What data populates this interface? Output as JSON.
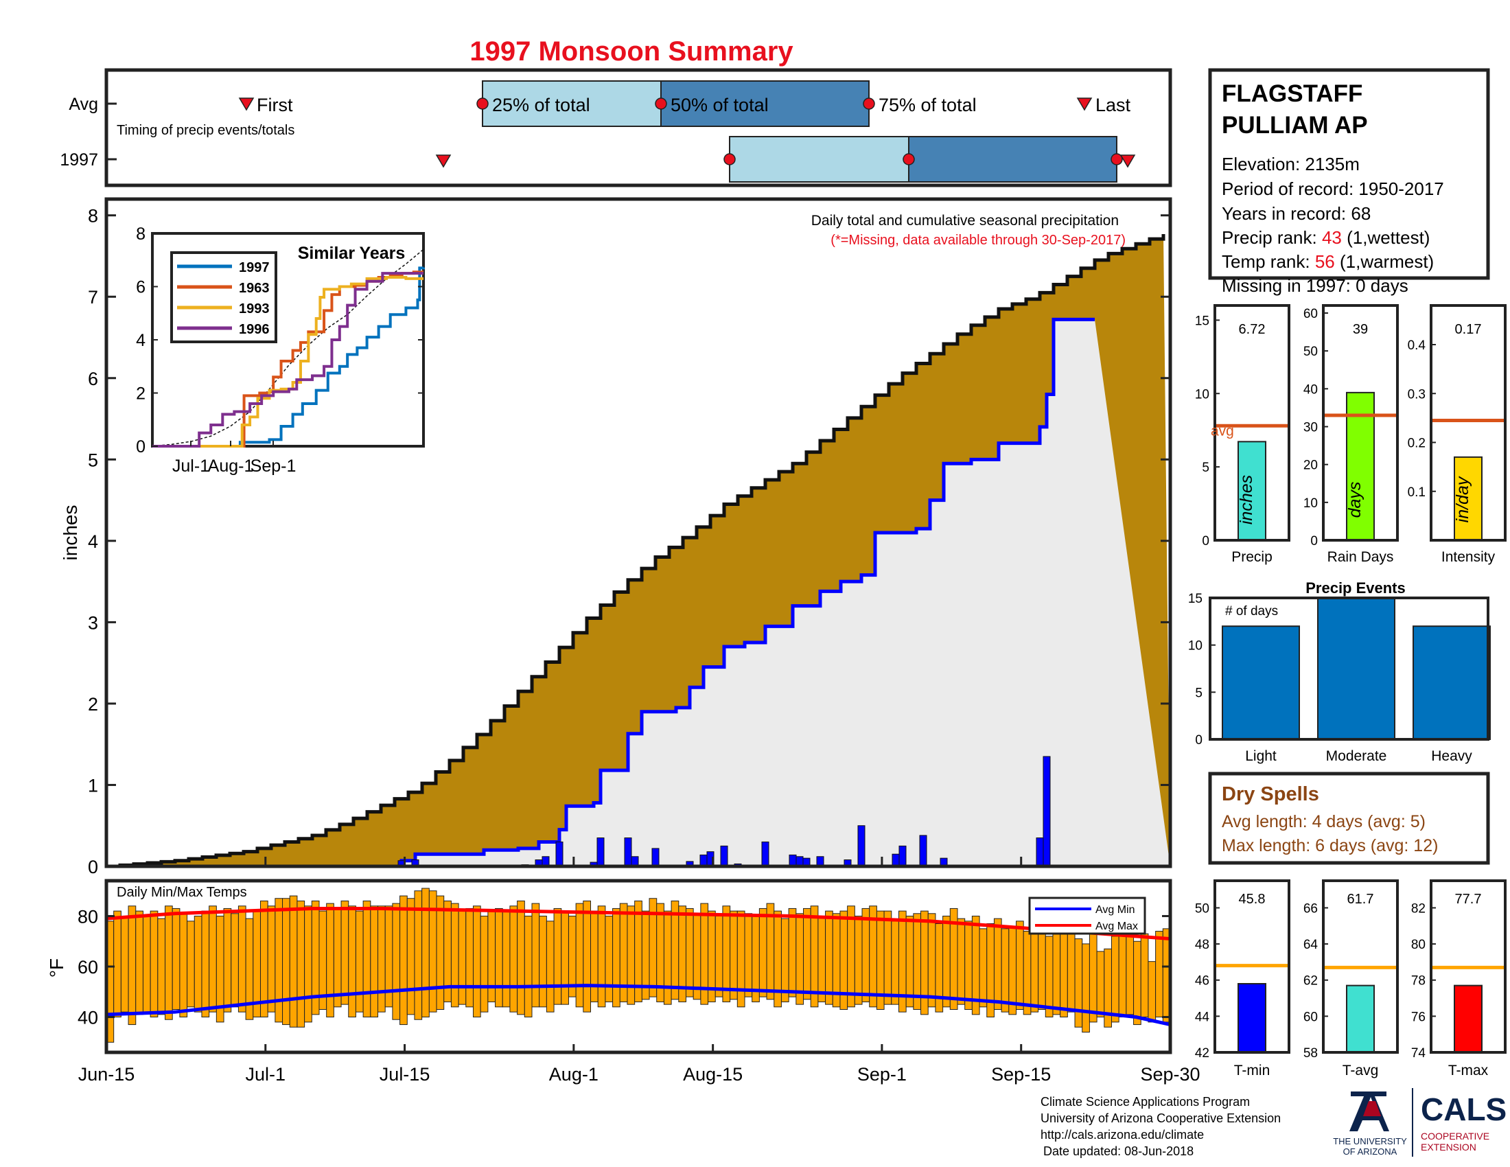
{
  "title": "1997 Monsoon Summary",
  "timing": {
    "row_avg": "Avg",
    "row_year": "1997",
    "first_label": "First",
    "last_label": "Last",
    "p25_label": "25% of total",
    "p50_label": "50% of total",
    "p75_label": "75% of total",
    "caption": "Timing of precip events/totals",
    "avg": {
      "first": "Jun-30",
      "p25": "Jul-26",
      "p50": "Aug-07",
      "p75": "Aug-29",
      "last": "Sep-24"
    },
    "year": {
      "first": "Jul-20",
      "p25": "Aug-17",
      "p50": "Sep-05",
      "p75": "Sep-27",
      "last": "Sep-28"
    }
  },
  "station": {
    "name_line1": "FLAGSTAFF",
    "name_line2": "PULLIAM AP",
    "elevation": "Elevation: 2135m",
    "period": "Period of record: 1950-2017",
    "years": "Years in record: 68",
    "precip_rank_prefix": "Precip rank: ",
    "precip_rank_value": "43",
    "precip_rank_suffix": " (1,wettest)",
    "temp_rank_prefix": "Temp rank: ",
    "temp_rank_value": "56",
    "temp_rank_suffix": " (1,warmest)",
    "missing": "Missing in 1997: 0 days"
  },
  "main_chart": {
    "title": "Daily total and cumulative seasonal precipitation",
    "note": "(*=Missing, data available through 30-Sep-2017)",
    "ylabel": "inches",
    "ylim": [
      0,
      8.2
    ],
    "yticks": [
      0,
      1,
      2,
      3,
      4,
      5,
      6,
      7,
      8
    ],
    "xticks": [
      "Jun-15",
      "Jul-1",
      "Jul-15",
      "Aug-1",
      "Aug-15",
      "Sep-1",
      "Sep-15",
      "Sep-30"
    ],
    "avg_cumulative": [
      [
        0,
        0
      ],
      [
        10,
        0.07
      ],
      [
        20,
        0.18
      ],
      [
        30,
        0.38
      ],
      [
        35,
        0.55
      ],
      [
        40,
        0.75
      ],
      [
        45,
        0.95
      ],
      [
        50,
        1.3
      ],
      [
        55,
        1.7
      ],
      [
        60,
        2.15
      ],
      [
        65,
        2.6
      ],
      [
        70,
        3.05
      ],
      [
        75,
        3.45
      ],
      [
        80,
        3.8
      ],
      [
        85,
        4.1
      ],
      [
        90,
        4.45
      ],
      [
        95,
        4.7
      ],
      [
        100,
        4.95
      ],
      [
        105,
        5.3
      ],
      [
        110,
        5.65
      ],
      [
        115,
        6.0
      ],
      [
        120,
        6.3
      ],
      [
        125,
        6.6
      ],
      [
        130,
        6.85
      ],
      [
        135,
        7.0
      ],
      [
        140,
        7.25
      ],
      [
        145,
        7.5
      ],
      [
        150,
        7.65
      ],
      [
        155,
        7.8
      ]
    ],
    "year_cumulative": [
      [
        0,
        0
      ],
      [
        42,
        0
      ],
      [
        43,
        0.07
      ],
      [
        45,
        0.15
      ],
      [
        55,
        0.2
      ],
      [
        60,
        0.22
      ],
      [
        63,
        0.3
      ],
      [
        66,
        0.45
      ],
      [
        67,
        0.74
      ],
      [
        71,
        0.78
      ],
      [
        72,
        1.18
      ],
      [
        76,
        1.63
      ],
      [
        78,
        1.9
      ],
      [
        83,
        1.95
      ],
      [
        85,
        2.2
      ],
      [
        87,
        2.45
      ],
      [
        90,
        2.7
      ],
      [
        93,
        2.75
      ],
      [
        96,
        2.95
      ],
      [
        100,
        3.2
      ],
      [
        104,
        3.38
      ],
      [
        107,
        3.5
      ],
      [
        110,
        3.58
      ],
      [
        112,
        4.1
      ],
      [
        118,
        4.15
      ],
      [
        120,
        4.5
      ],
      [
        122,
        4.95
      ],
      [
        126,
        5.0
      ],
      [
        130,
        5.2
      ],
      [
        136,
        5.4
      ],
      [
        137,
        5.8
      ],
      [
        138,
        6.72
      ],
      [
        144,
        6.72
      ]
    ],
    "daily_precip": [
      [
        43,
        0.07
      ],
      [
        45,
        0.08
      ],
      [
        61,
        0.02
      ],
      [
        63,
        0.08
      ],
      [
        64,
        0.12
      ],
      [
        66,
        0.3
      ],
      [
        71,
        0.05
      ],
      [
        72,
        0.35
      ],
      [
        76,
        0.35
      ],
      [
        77,
        0.12
      ],
      [
        80,
        0.22
      ],
      [
        85,
        0.06
      ],
      [
        87,
        0.14
      ],
      [
        88,
        0.18
      ],
      [
        90,
        0.25
      ],
      [
        92,
        0.03
      ],
      [
        96,
        0.3
      ],
      [
        100,
        0.14
      ],
      [
        101,
        0.12
      ],
      [
        102,
        0.1
      ],
      [
        104,
        0.12
      ],
      [
        108,
        0.08
      ],
      [
        110,
        0.5
      ],
      [
        115,
        0.15
      ],
      [
        116,
        0.25
      ],
      [
        119,
        0.38
      ],
      [
        122,
        0.1
      ],
      [
        136,
        0.35
      ],
      [
        137,
        1.35
      ]
    ],
    "inset": {
      "title": "Similar Years",
      "ylim": [
        0,
        8
      ],
      "yticks": [
        0,
        2,
        4,
        6,
        8
      ],
      "xticks": [
        "Jul-1",
        "Aug-1",
        "Sep-1"
      ],
      "series": [
        {
          "name": "1997",
          "color": "#0072bd",
          "points": [
            [
              0,
              0
            ],
            [
              43,
              0
            ],
            [
              45,
              0.15
            ],
            [
              60,
              0.25
            ],
            [
              66,
              0.75
            ],
            [
              72,
              1.2
            ],
            [
              77,
              1.6
            ],
            [
              84,
              2.1
            ],
            [
              90,
              2.75
            ],
            [
              96,
              3.0
            ],
            [
              100,
              3.45
            ],
            [
              105,
              3.7
            ],
            [
              110,
              4.1
            ],
            [
              116,
              4.5
            ],
            [
              122,
              4.95
            ],
            [
              130,
              5.2
            ],
            [
              136,
              5.5
            ],
            [
              137,
              6.7
            ],
            [
              139,
              6.72
            ]
          ]
        },
        {
          "name": "1963",
          "color": "#d95319",
          "points": [
            [
              0,
              0
            ],
            [
              45,
              0
            ],
            [
              47,
              1.9
            ],
            [
              55,
              2.0
            ],
            [
              60,
              2.05
            ],
            [
              62,
              2.6
            ],
            [
              66,
              3.2
            ],
            [
              72,
              3.6
            ],
            [
              76,
              3.9
            ],
            [
              80,
              4.3
            ],
            [
              88,
              5.1
            ],
            [
              92,
              5.7
            ],
            [
              96,
              6.0
            ],
            [
              104,
              6.05
            ],
            [
              110,
              6.2
            ],
            [
              116,
              6.35
            ],
            [
              122,
              6.4
            ],
            [
              128,
              6.5
            ],
            [
              134,
              6.55
            ],
            [
              139,
              6.55
            ]
          ]
        },
        {
          "name": "1993",
          "color": "#edb120",
          "points": [
            [
              0,
              0
            ],
            [
              44,
              0
            ],
            [
              46,
              0.8
            ],
            [
              50,
              1.1
            ],
            [
              54,
              1.8
            ],
            [
              60,
              2.1
            ],
            [
              66,
              2.15
            ],
            [
              72,
              2.4
            ],
            [
              76,
              3.2
            ],
            [
              80,
              4.2
            ],
            [
              84,
              4.8
            ],
            [
              86,
              5.6
            ],
            [
              88,
              5.9
            ],
            [
              96,
              6.0
            ],
            [
              102,
              6.1
            ],
            [
              110,
              6.3
            ],
            [
              120,
              6.35
            ],
            [
              130,
              6.3
            ],
            [
              139,
              6.3
            ]
          ]
        },
        {
          "name": "1996",
          "color": "#7e2f8e",
          "points": [
            [
              0,
              0
            ],
            [
              20,
              0
            ],
            [
              24,
              0.5
            ],
            [
              30,
              0.8
            ],
            [
              36,
              1.2
            ],
            [
              42,
              1.3
            ],
            [
              50,
              1.6
            ],
            [
              56,
              1.9
            ],
            [
              62,
              2.05
            ],
            [
              70,
              2.15
            ],
            [
              74,
              2.5
            ],
            [
              82,
              2.65
            ],
            [
              88,
              3.0
            ],
            [
              92,
              4.0
            ],
            [
              96,
              4.5
            ],
            [
              100,
              5.3
            ],
            [
              104,
              5.9
            ],
            [
              110,
              6.2
            ],
            [
              118,
              6.5
            ],
            [
              128,
              6.5
            ],
            [
              139,
              6.5
            ]
          ]
        }
      ],
      "avg": [
        [
          0,
          0
        ],
        [
          10,
          0.07
        ],
        [
          20,
          0.18
        ],
        [
          30,
          0.38
        ],
        [
          40,
          0.75
        ],
        [
          50,
          1.3
        ],
        [
          60,
          2.15
        ],
        [
          70,
          3.05
        ],
        [
          80,
          3.8
        ],
        [
          90,
          4.45
        ],
        [
          100,
          4.95
        ],
        [
          110,
          5.65
        ],
        [
          120,
          6.3
        ],
        [
          130,
          6.85
        ],
        [
          139,
          7.4
        ]
      ]
    }
  },
  "mini_bars": [
    {
      "label": "Precip",
      "unit": "inches",
      "value_text": "6.72",
      "value": 6.72,
      "avg": 7.8,
      "ylim": [
        0,
        16
      ],
      "yticks": [
        0,
        5,
        10,
        15
      ],
      "color": "#40e0d0",
      "avg_text": "avg"
    },
    {
      "label": "Rain Days",
      "unit": "days",
      "value_text": "39",
      "value": 39,
      "avg": 33,
      "ylim": [
        0,
        62
      ],
      "yticks": [
        0,
        10,
        20,
        30,
        40,
        50,
        60
      ],
      "color": "#80ff00"
    },
    {
      "label": "Intensity",
      "unit": "in/day",
      "value_text": "0.17",
      "value": 0.17,
      "avg": 0.245,
      "ylim": [
        0,
        0.48
      ],
      "yticks": [
        0.1,
        0.2,
        0.3,
        0.4
      ],
      "color": "#ffd700"
    }
  ],
  "precip_events": {
    "title": "Precip Events",
    "ylabel_note": "# of days",
    "ylim": [
      0,
      15
    ],
    "yticks": [
      0,
      5,
      10,
      15
    ],
    "categories": [
      "Light",
      "Moderate",
      "Heavy"
    ],
    "values": [
      12,
      15,
      12
    ],
    "color": "#0072bd"
  },
  "dry_spells": {
    "title": "Dry Spells",
    "avg_length": "Avg length: 4 days (avg: 5)",
    "max_length": "Max length: 6 days (avg: 12)"
  },
  "temps": {
    "title": "Daily Min/Max Temps",
    "ylabel": "°F",
    "ylim": [
      26,
      94
    ],
    "yticks": [
      40,
      60,
      80
    ],
    "legend": {
      "min": "Avg Min",
      "max": "Avg Max"
    },
    "min_values": [
      30,
      40,
      42,
      37,
      41,
      42,
      40,
      41,
      39,
      43,
      40,
      44,
      42,
      40,
      42,
      38,
      42,
      44,
      42,
      39,
      40,
      40,
      42,
      38,
      37,
      36,
      36,
      38,
      41,
      43,
      40,
      44,
      45,
      40,
      42,
      40,
      40,
      42,
      44,
      39,
      37,
      41,
      39,
      40,
      42,
      43,
      46,
      44,
      45,
      44,
      40,
      42,
      46,
      44,
      44,
      42,
      41,
      40,
      44,
      44,
      42,
      45,
      45,
      48,
      44,
      42,
      46,
      44,
      46,
      44,
      46,
      45,
      46,
      47,
      48,
      46,
      45,
      47,
      46,
      48,
      47,
      45,
      46,
      48,
      46,
      47,
      44,
      48,
      46,
      48,
      47,
      44,
      46,
      48,
      45,
      47,
      44,
      46,
      45,
      44,
      43,
      44,
      45,
      46,
      44,
      43,
      45,
      45,
      42,
      44,
      43,
      41,
      44,
      42,
      44,
      43,
      45,
      43,
      41,
      44,
      40,
      43,
      42,
      41,
      43,
      41,
      42,
      43,
      40,
      41,
      40,
      42,
      36,
      34,
      38,
      40,
      36,
      38,
      40,
      41,
      37,
      40,
      38,
      40,
      38
    ],
    "max_values": [
      78,
      82,
      80,
      84,
      82,
      80,
      82,
      79,
      84,
      83,
      81,
      78,
      80,
      82,
      84,
      80,
      83,
      81,
      84,
      79,
      82,
      86,
      84,
      87,
      87,
      88,
      86,
      84,
      86,
      82,
      85,
      83,
      86,
      84,
      82,
      86,
      84,
      84,
      84,
      85,
      88,
      87,
      90,
      91,
      90,
      88,
      86,
      85,
      82,
      83,
      84,
      80,
      82,
      83,
      82,
      84,
      86,
      80,
      85,
      80,
      78,
      83,
      82,
      80,
      85,
      86,
      82,
      84,
      80,
      83,
      85,
      84,
      86,
      82,
      87,
      85,
      82,
      86,
      84,
      83,
      81,
      85,
      82,
      80,
      84,
      82,
      82,
      81,
      80,
      83,
      85,
      82,
      79,
      83,
      81,
      83,
      84,
      80,
      82,
      81,
      82,
      84,
      80,
      83,
      84,
      82,
      82,
      78,
      82,
      80,
      81,
      82,
      81,
      77,
      80,
      83,
      79,
      78,
      80,
      75,
      77,
      79,
      75,
      76,
      78,
      74,
      76,
      78,
      72,
      73,
      75,
      76,
      71,
      69,
      73,
      66,
      67,
      72,
      74,
      72,
      70,
      73,
      62,
      74,
      75
    ],
    "avg_min": [
      [
        0,
        41
      ],
      [
        10,
        42
      ],
      [
        20,
        45
      ],
      [
        30,
        48
      ],
      [
        40,
        50
      ],
      [
        50,
        52
      ],
      [
        60,
        52
      ],
      [
        70,
        52.5
      ],
      [
        80,
        52
      ],
      [
        90,
        51
      ],
      [
        100,
        50
      ],
      [
        110,
        49
      ],
      [
        120,
        48
      ],
      [
        130,
        46
      ],
      [
        140,
        43
      ],
      [
        150,
        40
      ],
      [
        155,
        37
      ]
    ],
    "avg_max": [
      [
        0,
        79
      ],
      [
        10,
        81
      ],
      [
        20,
        82
      ],
      [
        30,
        83
      ],
      [
        40,
        83
      ],
      [
        50,
        82.5
      ],
      [
        60,
        82
      ],
      [
        70,
        81.5
      ],
      [
        80,
        81
      ],
      [
        90,
        80.5
      ],
      [
        100,
        80
      ],
      [
        110,
        79
      ],
      [
        120,
        78
      ],
      [
        130,
        76
      ],
      [
        140,
        74
      ],
      [
        150,
        72
      ],
      [
        155,
        71
      ]
    ],
    "bar_color": "#ffa500"
  },
  "temp_bars": [
    {
      "label": "T-min",
      "value_text": "45.8",
      "value": 45.8,
      "avg": 46.8,
      "ylim": [
        42,
        51.5
      ],
      "yticks": [
        42,
        44,
        46,
        48,
        50
      ],
      "color": "#0000ff"
    },
    {
      "label": "T-avg",
      "value_text": "61.7",
      "value": 61.7,
      "avg": 62.7,
      "ylim": [
        58,
        67.5
      ],
      "yticks": [
        58,
        60,
        62,
        64,
        66
      ],
      "color": "#40e0d0"
    },
    {
      "label": "T-max",
      "value_text": "77.7",
      "value": 77.7,
      "avg": 78.7,
      "ylim": [
        74,
        83.5
      ],
      "yticks": [
        74,
        76,
        78,
        80,
        82
      ],
      "color": "#ff0000"
    }
  ],
  "footer": {
    "line1": "Climate Science Applications Program",
    "line2": "University of Arizona Cooperative Extension",
    "line3": "http://cals.arizona.edu/climate",
    "line4": "Date updated: 08-Jun-2018",
    "ua_line1": "THE UNIVERSITY",
    "ua_line2": "OF ARIZONA",
    "cals": "CALS",
    "cals_sub1": "COOPERATIVE",
    "cals_sub2": "EXTENSION"
  },
  "colors": {
    "title": "#e8101e",
    "fill_avg": "#b8860b",
    "fill_year": "#ebebeb",
    "cum_line": "#0000ff",
    "dry": "#8b4513",
    "avg_line": "#d95319",
    "temp_avg_line": "#ffa500"
  }
}
